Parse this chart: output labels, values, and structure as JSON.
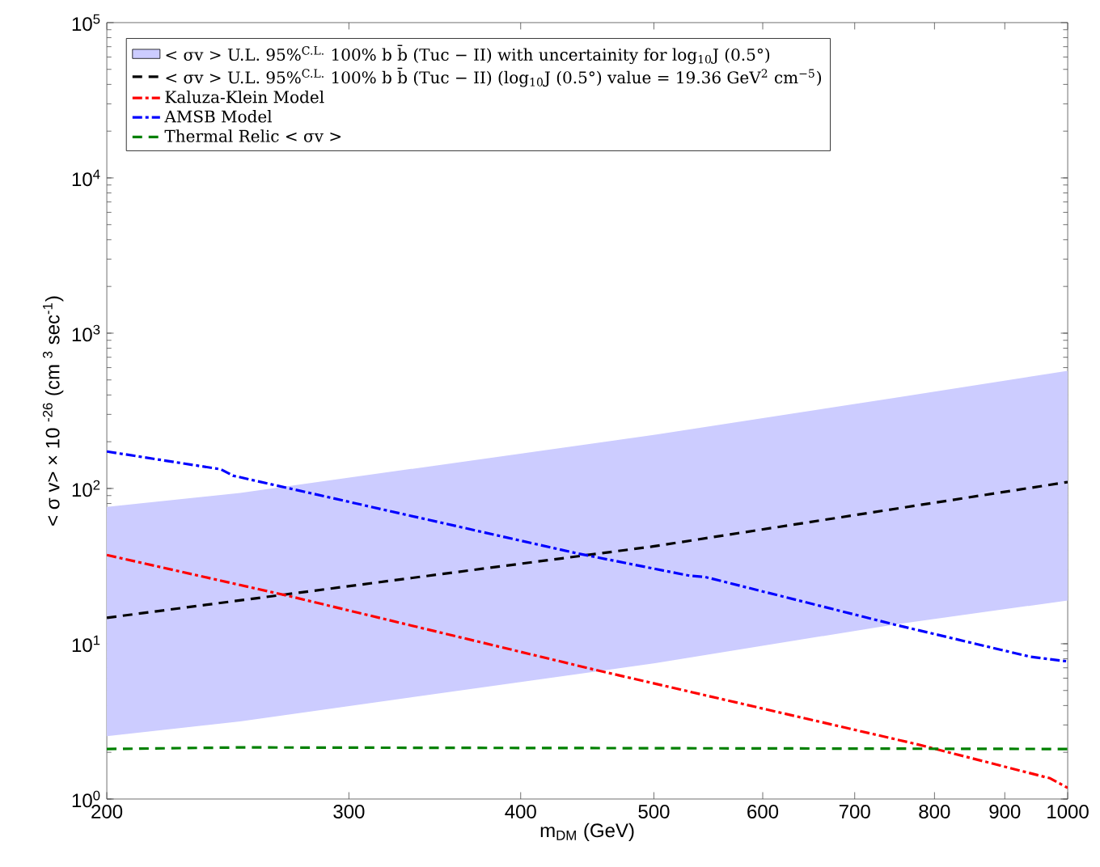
{
  "chart_data": {
    "type": "line",
    "xlabel": "m$_{DM}$ (GeV)",
    "ylabel": "< σ v> × 10 $^{-26}$ (cm $^{3}$ sec$^{-1}$)",
    "log": "xy",
    "legend": "top",
    "grid": false,
    "xlim": [
      200,
      1000
    ],
    "xticks": [
      200,
      300,
      400,
      500,
      600,
      700,
      800,
      900,
      1000
    ],
    "ylim": [
      1,
      100000
    ],
    "yticks": [
      {
        "value": 1,
        "label": "10$^{0}$"
      },
      {
        "value": 10,
        "label": "10$^{1}$"
      },
      {
        "value": 100,
        "label": "10$^{2}$"
      },
      {
        "value": 1000,
        "label": "10$^{3}$"
      },
      {
        "value": 10000,
        "label": "10$^{4}$"
      },
      {
        "value": 100000,
        "label": "10$^{5}$"
      }
    ],
    "series": [
      {
        "name": "< σv >  U.L. 95%$^{C.L.}$ 100% b b̄ (Tuc − II) with uncertainity for log$_{10}$J (0.5°)",
        "color": "#ccccff",
        "x": [
          200,
          250,
          501,
          748,
          1000
        ],
        "values": [
          null,
          null,
          null,
          null,
          null
        ],
        "lower": [
          2.54,
          3.16,
          7.5,
          13.3,
          19
        ],
        "upper": [
          76,
          93.5,
          222,
          383,
          573
        ]
      },
      {
        "type": "line",
        "name": "< σv >  U.L. 95%$^{C.L.}$ 100% b b̄ (Tuc − II) (log$_{10}$J (0.5°) value = 19.36 GeV$^{2}$ cm$^{−5}$)",
        "color": "#000000",
        "line_style": "dashed",
        "x": [
          200,
          498,
          1000
        ],
        "values": [
          14.7,
          42.2,
          110
        ]
      },
      {
        "type": "line",
        "name": "Kaluza-Klein Model",
        "color": "#ff0000",
        "line_style": "dashdot",
        "x": [
          200,
          270,
          453,
          776,
          971,
          1000
        ],
        "values": [
          37.3,
          20.5,
          6.8,
          2.26,
          1.36,
          1.18
        ]
      },
      {
        "type": "line",
        "name": "AMSB Model",
        "color": "#0000ff",
        "line_style": "dashdot",
        "x": [
          200,
          242,
          247,
          439,
          531,
          545,
          748,
          939,
          1000
        ],
        "values": [
          173,
          133,
          121,
          38.3,
          27.4,
          26.9,
          13.3,
          8.25,
          7.7
        ]
      },
      {
        "type": "line",
        "name": "Thermal Relic < σv >",
        "color": "#008000",
        "line_style": "dashed",
        "x": [
          200,
          250,
          1000
        ],
        "values": [
          2.1,
          2.15,
          2.1
        ]
      }
    ]
  }
}
